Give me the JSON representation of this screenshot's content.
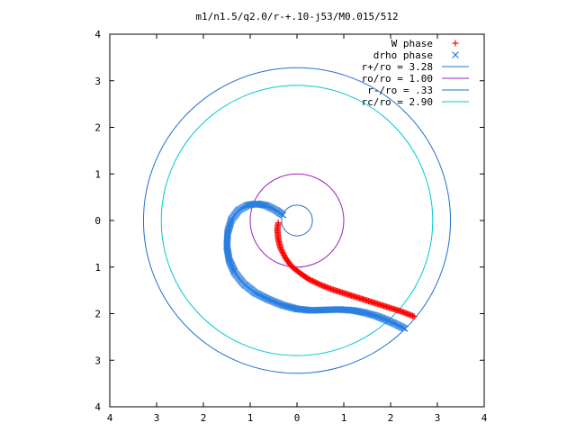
{
  "chart_data": {
    "type": "scatter",
    "title": "m1/n1.5/q2.0/r-+.10-j53/M0.015/512",
    "xlabel": "",
    "ylabel": "",
    "xlim": [
      -4,
      4
    ],
    "ylim": [
      -4,
      4
    ],
    "x_tick_labels": [
      "4",
      "3",
      "2",
      "1",
      "0",
      "1",
      "2",
      "3",
      "4"
    ],
    "y_tick_labels": [
      "4",
      "3",
      "2",
      "1",
      "0",
      "1",
      "2",
      "3",
      "4"
    ],
    "grid": false,
    "legend_position": "top-right",
    "series": [
      {
        "name": "W phase",
        "kind": "points",
        "marker": "plus",
        "color": "#ff0000",
        "x": [
          -0.4,
          -0.42,
          -0.4,
          -0.35,
          -0.25,
          -0.12,
          0.05,
          0.25,
          0.5,
          0.75,
          1.0,
          1.25,
          1.5,
          1.75,
          2.0,
          2.25,
          2.5
        ],
        "y": [
          -0.05,
          -0.2,
          -0.4,
          -0.6,
          -0.8,
          -0.98,
          -1.12,
          -1.26,
          -1.38,
          -1.48,
          -1.56,
          -1.64,
          -1.72,
          -1.8,
          -1.88,
          -1.96,
          -2.06
        ]
      },
      {
        "name": "drho phase",
        "kind": "points",
        "marker": "cross",
        "color": "#2a7fe0",
        "x": [
          -0.3,
          -0.45,
          -0.65,
          -0.85,
          -1.05,
          -1.25,
          -1.4,
          -1.48,
          -1.5,
          -1.45,
          -1.33,
          -1.15,
          -0.9,
          -0.6,
          -0.3,
          0.0,
          0.3,
          0.6,
          0.9,
          1.2,
          1.45,
          1.7,
          1.9,
          2.1,
          2.3
        ],
        "y": [
          0.12,
          0.22,
          0.32,
          0.36,
          0.33,
          0.22,
          0.02,
          -0.25,
          -0.55,
          -0.85,
          -1.12,
          -1.35,
          -1.55,
          -1.7,
          -1.82,
          -1.9,
          -1.93,
          -1.92,
          -1.91,
          -1.93,
          -1.98,
          -2.05,
          -2.13,
          -2.22,
          -2.32
        ]
      },
      {
        "name": "r+/ro = 3.28",
        "kind": "circle",
        "radius": 3.28,
        "color": "#1f6fd0"
      },
      {
        "name": "ro/ro = 1.00",
        "kind": "circle",
        "radius": 1.0,
        "color": "#a020c0"
      },
      {
        "name": "r-/ro = .33",
        "kind": "circle",
        "radius": 0.33,
        "color": "#1f6fd0"
      },
      {
        "name": "rc/ro = 2.90",
        "kind": "circle",
        "radius": 2.9,
        "color": "#00c8d0"
      }
    ]
  }
}
